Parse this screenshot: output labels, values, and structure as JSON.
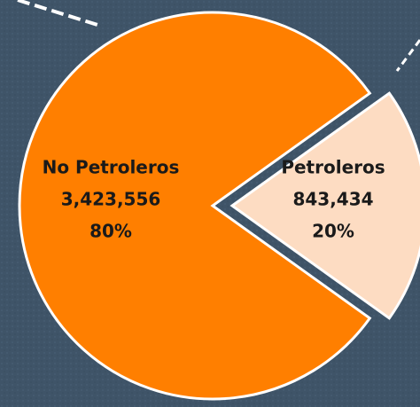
{
  "chart_data": {
    "type": "pie",
    "categories": [
      "No Petroleros",
      "Petroleros"
    ],
    "values": [
      3423556,
      843434
    ],
    "value_labels": [
      "3,423,556",
      "843,434"
    ],
    "percent_labels": [
      "80%",
      "20%"
    ],
    "colors": [
      "#ff7f00",
      "#fddcc2"
    ]
  }
}
